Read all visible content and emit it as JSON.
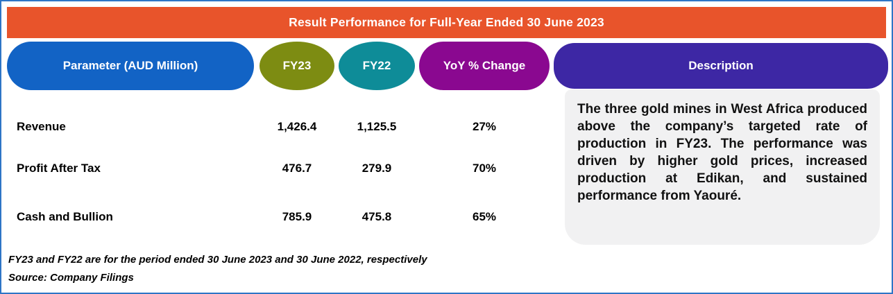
{
  "title": "Result Performance for Full-Year Ended 30 June 2023",
  "chart_data": {
    "type": "table",
    "title": "Result Performance for Full-Year Ended 30 June 2023",
    "columns": [
      "Parameter (AUD Million)",
      "FY23",
      "FY22",
      "YoY % Change",
      "Description"
    ],
    "rows": [
      {
        "parameter": "Revenue",
        "fy23": "1,426.4",
        "fy22": "1,125.5",
        "yoy_change": "27%"
      },
      {
        "parameter": "Profit After Tax",
        "fy23": "476.7",
        "fy22": "279.9",
        "yoy_change": "70%"
      },
      {
        "parameter": "Cash and Bullion",
        "fy23": "785.9",
        "fy22": "475.8",
        "yoy_change": "65%"
      }
    ]
  },
  "headers": {
    "parameter": "Parameter (AUD Million)",
    "fy23": "FY23",
    "fy22": "FY22",
    "yoy": "YoY % Change",
    "description": "Description"
  },
  "description_text": "The three gold mines in West Africa produced above the company’s targeted rate of production in FY23. The performance was driven by higher gold prices, increased production at Edikan, and sustained performance from Yaouré.",
  "footnotes": {
    "period_note": "FY23 and FY22 are for the period ended 30 June 2023 and 30 June 2022, respectively",
    "source": "Source: Company Filings"
  },
  "colors": {
    "title_bar": "#E8542B",
    "parameter_header": "#1263C5",
    "fy23_header": "#7D8C12",
    "fy22_header": "#0E8C98",
    "yoy_header": "#8A0890",
    "description_header": "#3D27A4",
    "description_body_bg": "#F1F1F2",
    "frame_border": "#2E75C6",
    "text": "#000000"
  }
}
